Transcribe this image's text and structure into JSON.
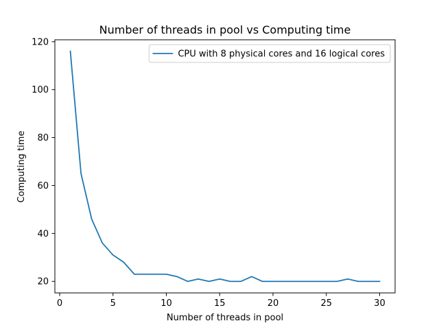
{
  "chart_data": {
    "type": "line",
    "title": "Number of threads in pool vs Computing time",
    "xlabel": "Number of threads in pool",
    "ylabel": "Computing time",
    "xlim": [
      -0.45,
      31.45
    ],
    "ylim": [
      15.2,
      120.8
    ],
    "xticks": [
      0,
      5,
      10,
      15,
      20,
      25,
      30
    ],
    "yticks": [
      20,
      40,
      60,
      80,
      100,
      120
    ],
    "grid": false,
    "legend_position": "top-right",
    "series": [
      {
        "name": "CPU with 8 physical cores and 16 logical cores",
        "color": "#1f77b4",
        "x": [
          1,
          2,
          3,
          4,
          5,
          6,
          7,
          8,
          9,
          10,
          11,
          12,
          13,
          14,
          15,
          16,
          17,
          18,
          19,
          20,
          21,
          22,
          23,
          24,
          25,
          26,
          27,
          28,
          29,
          30
        ],
        "y": [
          116,
          65,
          46,
          36,
          31,
          28,
          23,
          23,
          23,
          23,
          22,
          20,
          21,
          20,
          21,
          20,
          20,
          22,
          20,
          20,
          20,
          20,
          20,
          20,
          20,
          20,
          21,
          20,
          20,
          20
        ]
      }
    ]
  }
}
